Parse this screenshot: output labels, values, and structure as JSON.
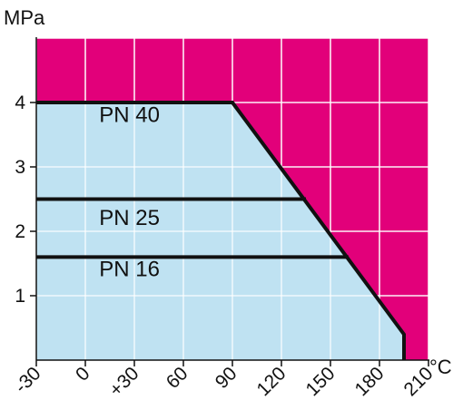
{
  "chart_data": {
    "type": "area",
    "title": "",
    "ylabel": "MPa",
    "xlabel": "°C",
    "xlim": [
      -30,
      210
    ],
    "ylim": [
      0,
      5
    ],
    "x_ticks": [
      "-30",
      "0",
      "+30",
      "60",
      "90",
      "120",
      "150",
      "180",
      "210"
    ],
    "y_ticks": [
      "1",
      "2",
      "3",
      "4"
    ],
    "grid": true,
    "colors": {
      "allowed_region": "#bfe2f2",
      "forbidden_region": "#e2007a",
      "limit_line": "#111111",
      "grid": "#ffffff"
    },
    "limit_curve": {
      "x": [
        -30,
        90,
        195,
        195
      ],
      "y": [
        4.0,
        4.0,
        0.4,
        0
      ]
    },
    "series": [
      {
        "name": "PN 40",
        "x": [
          -30,
          90
        ],
        "y": [
          4.0,
          4.0
        ]
      },
      {
        "name": "PN 25",
        "x": [
          -30,
          135
        ],
        "y": [
          2.5,
          2.5
        ]
      },
      {
        "name": "PN 16",
        "x": [
          -30,
          161
        ],
        "y": [
          1.6,
          1.6
        ]
      }
    ],
    "labels": [
      {
        "text": "PN 40",
        "x": 27,
        "y": 3.7
      },
      {
        "text": "PN 25",
        "x": 27,
        "y": 2.1
      },
      {
        "text": "PN 16",
        "x": 27,
        "y": 1.3
      }
    ]
  }
}
